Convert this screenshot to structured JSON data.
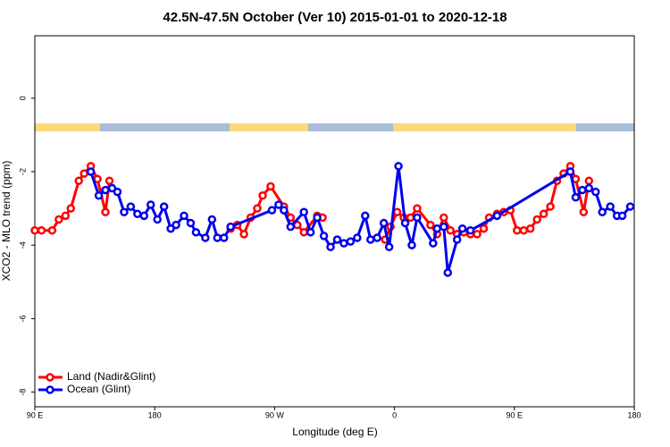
{
  "chart_data": {
    "type": "line",
    "title": "42.5N-47.5N October (Ver 10)   2015-01-01 to 2020-12-18",
    "xlabel": "Longitude (deg E)",
    "ylabel": "XCO2 - MLO trend (ppm)",
    "xlim": [
      90,
      540
    ],
    "ylim": [
      -8.4,
      1.7
    ],
    "xticks": [
      {
        "value": 90,
        "label": "90 E"
      },
      180,
      {
        "value": 270,
        "label": "90 W"
      },
      {
        "value": 360,
        "label": "0"
      },
      {
        "value": 450,
        "label": "90 E"
      },
      180
    ],
    "yticks": [
      0,
      -2,
      -4,
      -6,
      -8
    ],
    "legend": "bottom-left",
    "series": [
      {
        "name": "Land (Nadir&Glint)",
        "color": "#ff0000",
        "x": [
          90,
          95,
          103,
          108,
          113,
          117,
          123,
          127,
          132,
          137,
          143,
          146,
          null,
          237,
          242,
          247,
          252,
          257,
          261,
          267,
          277,
          282,
          287,
          292,
          302,
          306,
          null,
          353,
          357,
          362,
          367,
          372,
          377,
          387,
          392,
          397,
          402,
          407,
          412,
          417,
          422,
          427,
          431,
          437,
          442,
          447,
          452,
          457,
          462,
          467,
          472,
          477,
          482,
          487,
          492,
          496,
          502,
          506
        ],
        "values": [
          -3.6,
          -3.6,
          -3.6,
          -3.3,
          -3.2,
          -3.0,
          -2.25,
          -2.05,
          -1.85,
          -2.2,
          -3.1,
          -2.25,
          null,
          -3.55,
          -3.45,
          -3.7,
          -3.25,
          -3.0,
          -2.65,
          -2.4,
          -2.95,
          -3.25,
          -3.45,
          -3.65,
          -3.2,
          -3.25,
          null,
          -3.85,
          -3.5,
          -3.1,
          -3.25,
          -3.25,
          -3.0,
          -3.45,
          -3.7,
          -3.25,
          -3.6,
          -3.7,
          -3.65,
          -3.7,
          -3.7,
          -3.55,
          -3.25,
          -3.15,
          -3.1,
          -3.05,
          -3.6,
          -3.6,
          -3.55,
          -3.3,
          -3.15,
          -2.95,
          -2.25,
          -2.05,
          -1.85,
          -2.2,
          -3.1,
          -2.25
        ]
      },
      {
        "name": "Ocean (Glint)",
        "color": "#0000ee",
        "x": [
          132,
          138,
          143,
          148,
          152,
          157,
          162,
          167,
          172,
          177,
          182,
          187,
          192,
          196,
          202,
          207,
          211,
          218,
          223,
          227,
          232,
          237,
          268,
          273,
          277,
          282,
          292,
          297,
          302,
          307,
          312,
          317,
          322,
          327,
          332,
          338,
          342,
          347,
          352,
          356,
          363,
          368,
          373,
          377,
          389,
          392,
          397,
          400,
          407,
          411,
          417,
          437,
          492,
          496,
          501,
          506,
          511,
          516,
          522,
          527,
          531,
          537
        ],
        "values": [
          -2.0,
          -2.65,
          -2.5,
          -2.45,
          -2.55,
          -3.1,
          -2.95,
          -3.15,
          -3.2,
          -2.9,
          -3.3,
          -2.95,
          -3.55,
          -3.45,
          -3.2,
          -3.4,
          -3.65,
          -3.8,
          -3.3,
          -3.8,
          -3.8,
          -3.5,
          -3.05,
          -2.9,
          -3.05,
          -3.5,
          -3.1,
          -3.65,
          -3.25,
          -3.75,
          -4.05,
          -3.85,
          -3.95,
          -3.9,
          -3.8,
          -3.2,
          -3.85,
          -3.8,
          -3.4,
          -4.05,
          -1.85,
          -3.4,
          -4.0,
          -3.25,
          -3.95,
          -3.55,
          -3.5,
          -4.75,
          -3.85,
          -3.55,
          -3.6,
          -3.2,
          -2.0,
          -2.7,
          -2.5,
          -2.45,
          -2.55,
          -3.1,
          -2.95,
          -3.2,
          -3.2,
          -2.95
        ]
      }
    ]
  }
}
